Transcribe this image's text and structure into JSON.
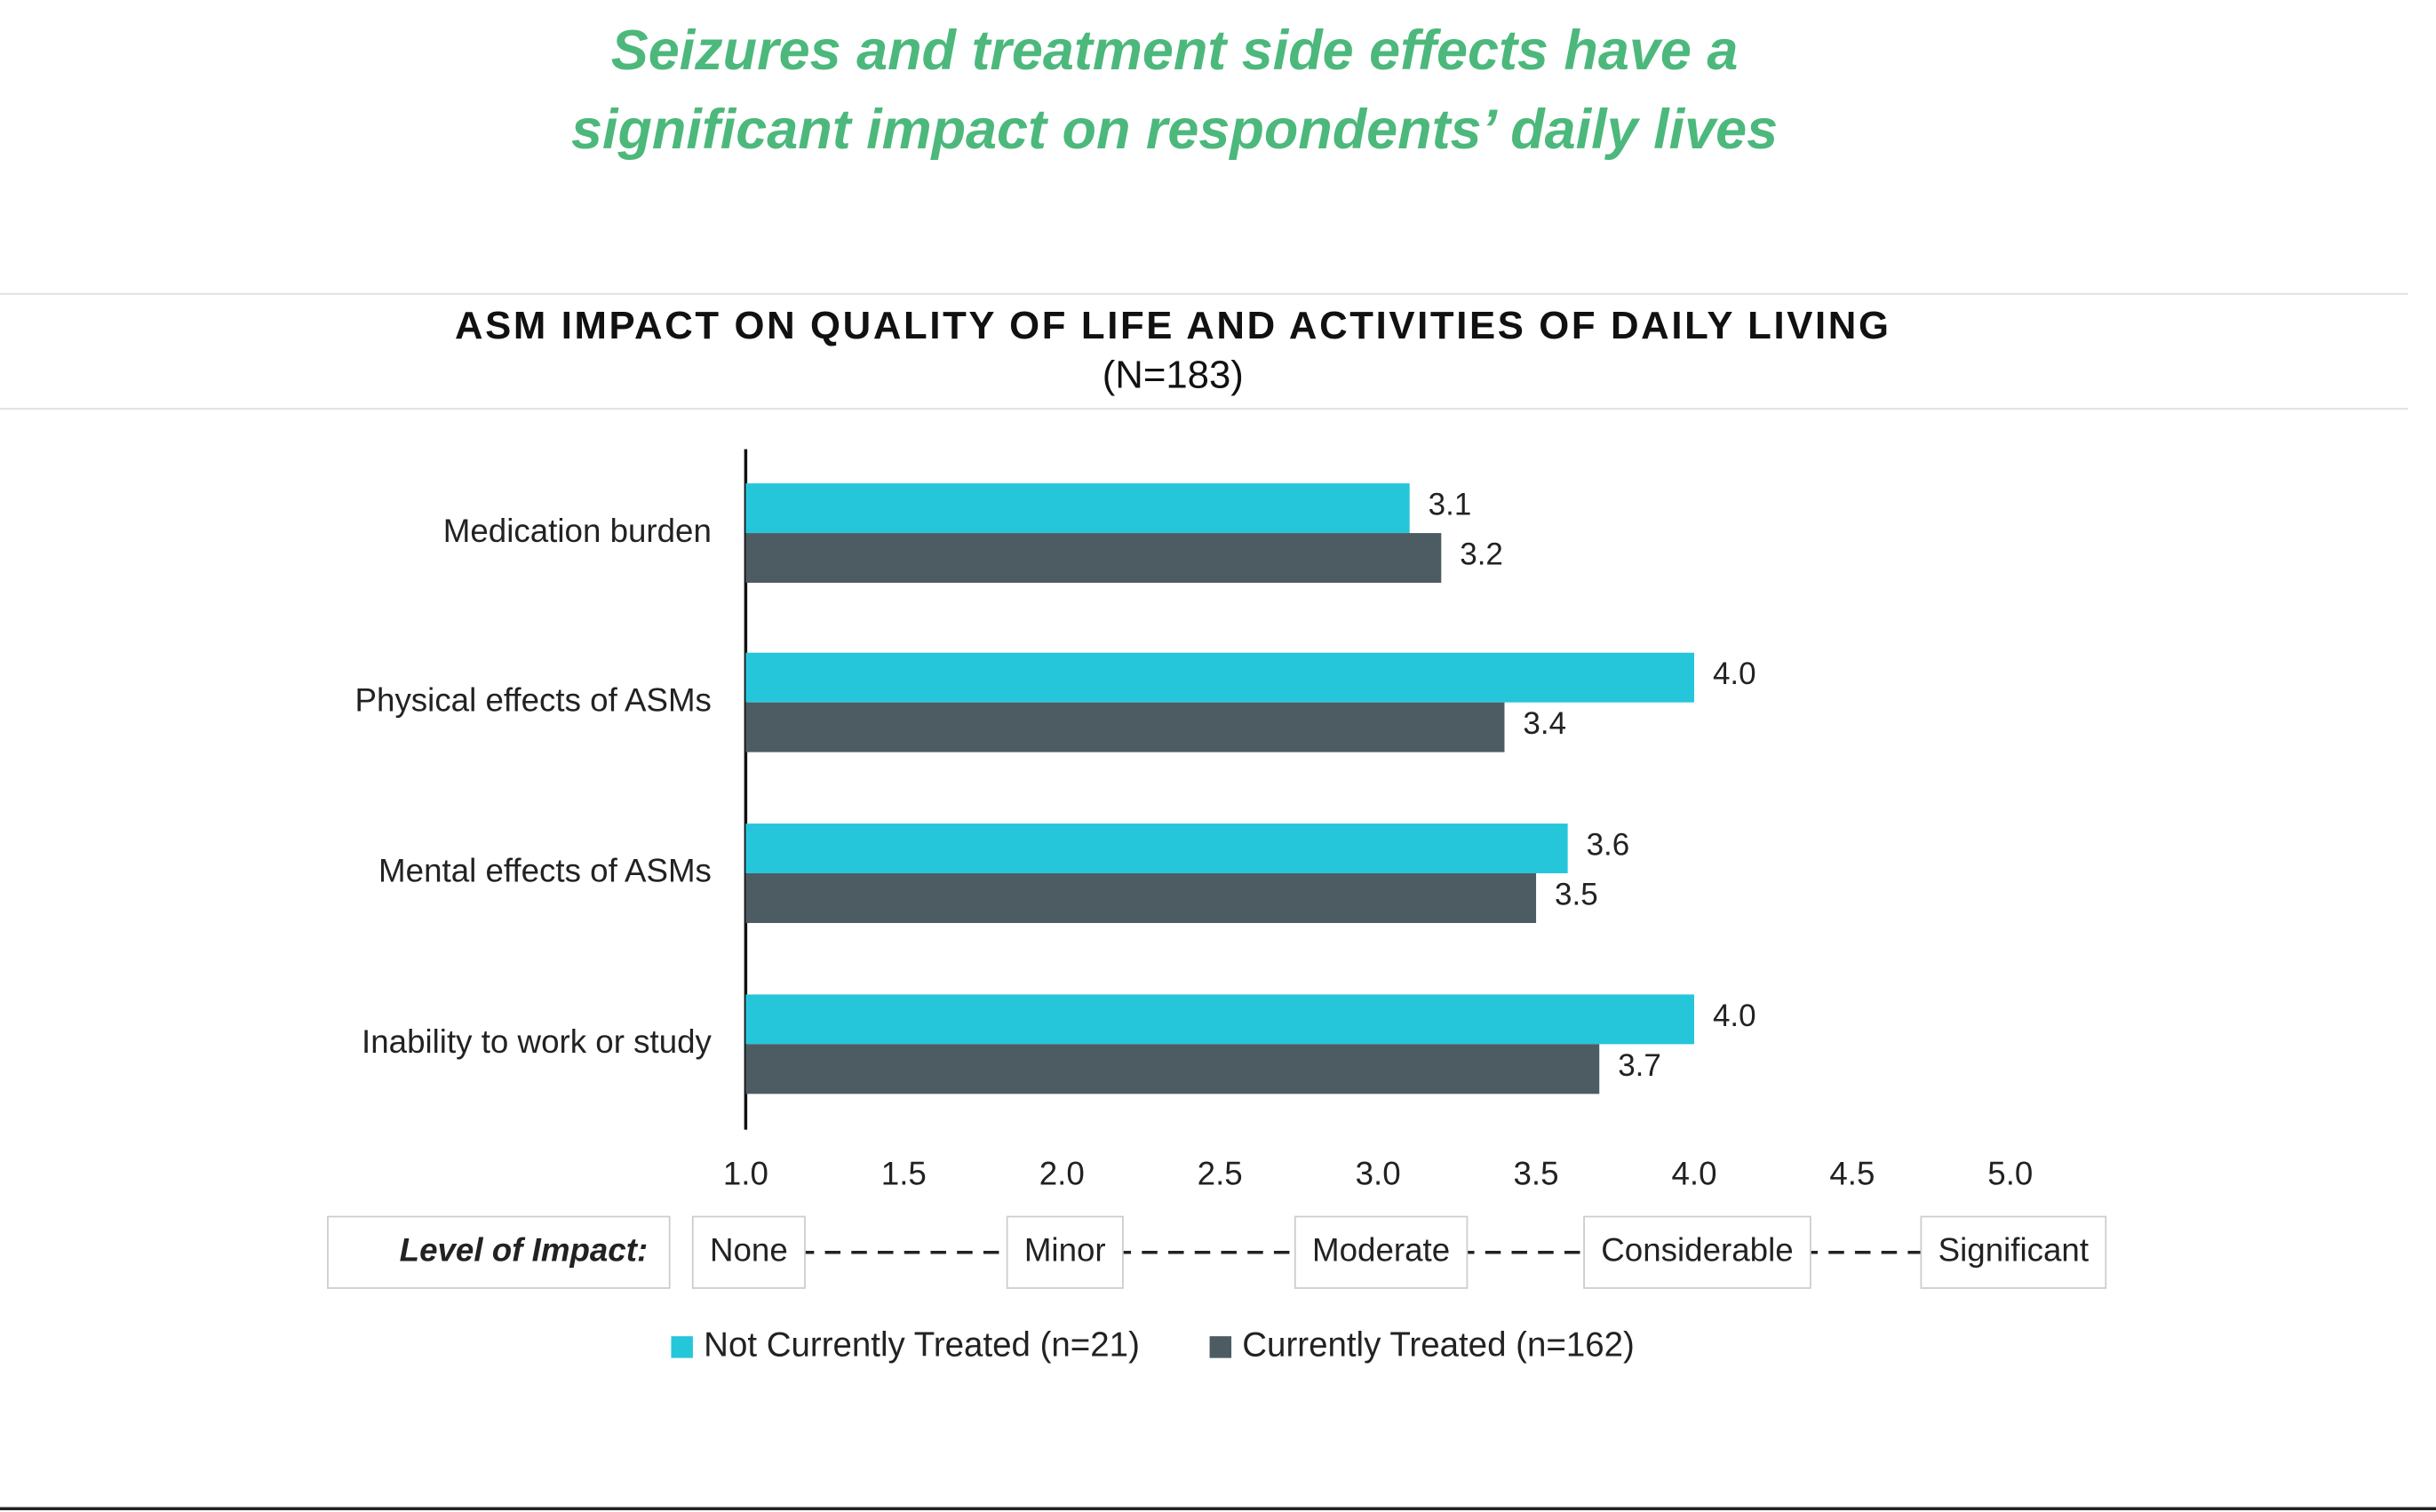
{
  "headline": [
    "Seizures and treatment side effects have a",
    "significant impact on respondents’ daily lives"
  ],
  "chart_data": {
    "type": "hbar",
    "title": "ASM IMPACT ON QUALITY OF LIFE AND ACTIVITIES OF DAILY LIVING",
    "subtitle": "(N=183)",
    "categories": [
      "Medication burden",
      "Physical effects of ASMs",
      "Mental effects of ASMs",
      "Inability to work or study"
    ],
    "series": [
      {
        "name": "Not Currently Treated (n=21)",
        "color": "#26c6da",
        "values": [
          3.1,
          4.0,
          3.6,
          4.0
        ],
        "value_labels": [
          "3.1",
          "4.0",
          "3.6",
          "4.0"
        ]
      },
      {
        "name": "Currently Treated (n=162)",
        "color": "#4d5c62",
        "values": [
          3.2,
          3.4,
          3.5,
          3.7
        ],
        "value_labels": [
          "3.2",
          "3.4",
          "3.5",
          "3.7"
        ]
      }
    ],
    "xlim": [
      1,
      5
    ],
    "xticks": [
      {
        "value": 1,
        "label": "1.0"
      },
      {
        "value": 1.5,
        "label": "1.5"
      },
      {
        "value": 2,
        "label": "2.0"
      },
      {
        "value": 2.5,
        "label": "2.5"
      },
      {
        "value": 3,
        "label": "3.0"
      },
      {
        "value": 3.5,
        "label": "3.5"
      },
      {
        "value": 4,
        "label": "4.0"
      },
      {
        "value": 4.5,
        "label": "4.5"
      },
      {
        "value": 5,
        "label": "5.0"
      }
    ],
    "impact_scale": {
      "label": "Level of Impact:",
      "levels": [
        {
          "value": 1,
          "label": "None"
        },
        {
          "value": 2,
          "label": "Minor"
        },
        {
          "value": 3,
          "label": "Moderate"
        },
        {
          "value": 4,
          "label": "Considerable"
        },
        {
          "value": 5,
          "label": "Significant"
        }
      ]
    },
    "legend": "bottom"
  }
}
